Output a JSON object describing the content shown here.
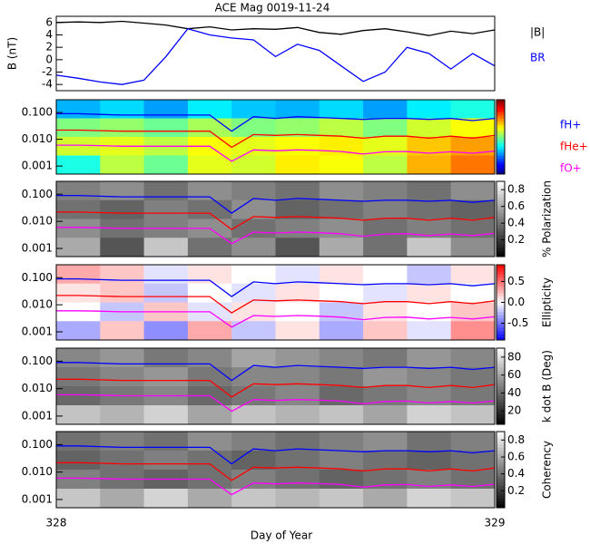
{
  "chart_data": {
    "type": "multi-panel",
    "title": "ACE Mag 0019-11-24",
    "x_label": "Day of Year",
    "xlim": [
      328,
      329
    ],
    "xticks": [
      328,
      329
    ],
    "x": [
      328.0,
      328.05,
      328.1,
      328.15,
      328.2,
      328.25,
      328.3,
      328.35,
      328.4,
      328.45,
      328.5,
      328.55,
      328.6,
      328.65,
      328.7,
      328.75,
      328.8,
      328.85,
      328.9,
      328.95,
      329.0
    ],
    "frequency_lines": [
      {
        "name": "fH+",
        "color": "#0000ff",
        "values": [
          0.09,
          0.09,
          0.085,
          0.08,
          0.08,
          0.08,
          0.08,
          0.08,
          0.02,
          0.07,
          0.06,
          0.07,
          0.065,
          0.06,
          0.055,
          0.06,
          0.06,
          0.055,
          0.06,
          0.05,
          0.06
        ]
      },
      {
        "name": "fHe+",
        "color": "#ff0000",
        "values": [
          0.022,
          0.022,
          0.021,
          0.02,
          0.02,
          0.02,
          0.02,
          0.02,
          0.005,
          0.015,
          0.014,
          0.015,
          0.014,
          0.013,
          0.011,
          0.013,
          0.013,
          0.011,
          0.013,
          0.011,
          0.014
        ]
      },
      {
        "name": "fO+",
        "color": "#ff00ff",
        "values": [
          0.006,
          0.006,
          0.0058,
          0.0055,
          0.0055,
          0.0055,
          0.0055,
          0.0055,
          0.0015,
          0.004,
          0.0037,
          0.004,
          0.0038,
          0.0035,
          0.0028,
          0.0034,
          0.0035,
          0.003,
          0.0034,
          0.003,
          0.0036
        ]
      }
    ],
    "panels": [
      {
        "type": "line",
        "ylabel": "B (nT)",
        "ylim": [
          -5,
          7
        ],
        "yticks": [
          -4,
          -2,
          0,
          2,
          4,
          6
        ],
        "series": [
          {
            "name": "|B|",
            "color": "#000000",
            "values": [
              6.0,
              6.1,
              6.0,
              6.2,
              5.9,
              5.6,
              5.0,
              5.3,
              4.8,
              5.0,
              4.9,
              5.2,
              4.4,
              4.1,
              4.7,
              5.0,
              4.5,
              3.9,
              4.6,
              4.2,
              4.8
            ]
          },
          {
            "name": "BR",
            "color": "#0000ff",
            "values": [
              -2.5,
              -3.0,
              -3.6,
              -4.0,
              -3.3,
              0.5,
              5.0,
              4.0,
              3.5,
              3.2,
              0.5,
              2.5,
              1.5,
              -1.0,
              -3.5,
              -2.0,
              2.0,
              1.0,
              -1.5,
              1.0,
              -1.0
            ]
          }
        ]
      },
      {
        "type": "heatmap",
        "log": true,
        "ylim": [
          0.0005,
          0.3
        ],
        "yticks": [
          0.001,
          {
            "value": 0.01,
            "label": "0.010"
          },
          {
            "value": 0.1,
            "label": "0.100"
          }
        ],
        "colormap": "jet",
        "clim": [
          -7,
          -2
        ],
        "legend": true,
        "z": [
          [
            -5.5,
            -5.3,
            -5.6,
            -5.2,
            -5.4,
            -5.5,
            -5.3,
            -5.6,
            -5.2,
            -5.0
          ],
          [
            -4.5,
            -4.4,
            -4.6,
            -4.3,
            -4.5,
            -4.4,
            -4.2,
            -4.5,
            -4.1,
            -3.9
          ],
          [
            -4.1,
            -4.0,
            -4.2,
            -3.9,
            -4.0,
            -3.9,
            -3.8,
            -4.0,
            -3.6,
            -3.4
          ],
          [
            -5.0,
            -4.2,
            -4.6,
            -4.0,
            -4.1,
            -3.8,
            -3.9,
            -4.2,
            -3.5,
            -3.2
          ]
        ]
      },
      {
        "type": "heatmap",
        "log": true,
        "ylim": [
          0.0005,
          0.3
        ],
        "yticks": [
          0.001,
          {
            "value": 0.01,
            "label": "0.010"
          },
          {
            "value": 0.1,
            "label": "0.100"
          }
        ],
        "colormap": "gray",
        "clim": [
          0,
          0.9
        ],
        "colorbar_label": "% Polarization",
        "colorbar_ticks": [
          0.2,
          0.4,
          0.6,
          0.8
        ],
        "z": [
          [
            0.45,
            0.5,
            0.4,
            0.5,
            0.45,
            0.4,
            0.5,
            0.45,
            0.4,
            0.5
          ],
          [
            0.4,
            0.35,
            0.45,
            0.4,
            0.5,
            0.35,
            0.4,
            0.45,
            0.4,
            0.35
          ],
          [
            0.5,
            0.4,
            0.45,
            0.5,
            0.4,
            0.45,
            0.5,
            0.4,
            0.45,
            0.4
          ],
          [
            0.6,
            0.3,
            0.7,
            0.4,
            0.5,
            0.3,
            0.6,
            0.4,
            0.7,
            0.5
          ]
        ]
      },
      {
        "type": "heatmap",
        "log": true,
        "ylim": [
          0.0005,
          0.3
        ],
        "yticks": [
          0.001,
          {
            "value": 0.01,
            "label": "0.010"
          },
          {
            "value": 0.1,
            "label": "0.100"
          }
        ],
        "colormap": "bwr",
        "clim": [
          -0.9,
          0.9
        ],
        "colorbar_label": "Ellipticity",
        "colorbar_ticks": [
          -0.5,
          {
            "value": 0,
            "label": "0.0"
          },
          0.5
        ],
        "z": [
          [
            0.3,
            0.2,
            -0.1,
            0.1,
            0.0,
            -0.1,
            0.1,
            0.0,
            -0.2,
            0.1
          ],
          [
            0.1,
            0.2,
            -0.2,
            0.0,
            -0.1,
            0.1,
            0.0,
            -0.1,
            0.1,
            0.0
          ],
          [
            0.0,
            -0.2,
            0.2,
            -0.1,
            0.1,
            0.0,
            -0.2,
            0.1,
            0.0,
            0.2
          ],
          [
            -0.3,
            0.2,
            -0.4,
            0.3,
            -0.2,
            0.1,
            -0.3,
            0.2,
            -0.1,
            0.4
          ]
        ]
      },
      {
        "type": "heatmap",
        "log": true,
        "ylim": [
          0.0005,
          0.3
        ],
        "yticks": [
          0.001,
          {
            "value": 0.01,
            "label": "0.010"
          },
          {
            "value": 0.1,
            "label": "0.100"
          }
        ],
        "colormap": "gray",
        "clim": [
          5,
          90
        ],
        "colorbar_label": "k dot B (Deg)",
        "colorbar_ticks": [
          20,
          40,
          60,
          80
        ],
        "z": [
          [
            50,
            55,
            45,
            50,
            60,
            55,
            50,
            45,
            55,
            50
          ],
          [
            45,
            50,
            55,
            45,
            50,
            50,
            45,
            55,
            50,
            45
          ],
          [
            40,
            45,
            50,
            40,
            45,
            50,
            40,
            45,
            50,
            45
          ],
          [
            70,
            65,
            75,
            60,
            70,
            65,
            70,
            60,
            75,
            70
          ]
        ]
      },
      {
        "type": "heatmap",
        "log": true,
        "ylim": [
          0.0005,
          0.3
        ],
        "yticks": [
          0.001,
          {
            "value": 0.01,
            "label": "0.010"
          },
          {
            "value": 0.1,
            "label": "0.100"
          }
        ],
        "colormap": "gray",
        "clim": [
          0,
          0.9
        ],
        "colorbar_label": "Coherency",
        "colorbar_ticks": [
          0.2,
          0.4,
          0.6,
          0.8
        ],
        "z": [
          [
            0.4,
            0.45,
            0.4,
            0.5,
            0.45,
            0.4,
            0.45,
            0.5,
            0.4,
            0.45
          ],
          [
            0.35,
            0.4,
            0.45,
            0.4,
            0.35,
            0.4,
            0.45,
            0.4,
            0.35,
            0.4
          ],
          [
            0.45,
            0.4,
            0.35,
            0.4,
            0.45,
            0.4,
            0.35,
            0.4,
            0.45,
            0.4
          ],
          [
            0.7,
            0.6,
            0.75,
            0.6,
            0.7,
            0.65,
            0.7,
            0.6,
            0.75,
            0.7
          ]
        ]
      }
    ]
  }
}
